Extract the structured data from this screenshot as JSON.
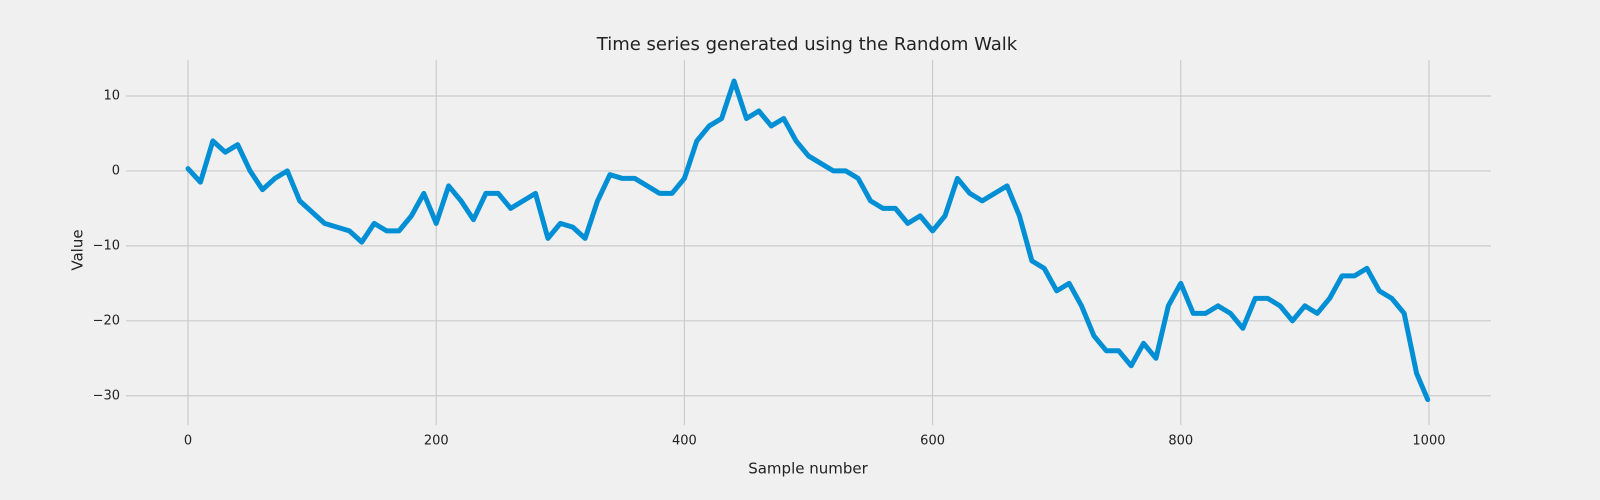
{
  "chart_data": {
    "type": "line",
    "title": "Time series generated using the Random Walk",
    "x_label": "Sample number",
    "y_label": "Value",
    "x": [
      0,
      10,
      20,
      30,
      40,
      50,
      60,
      70,
      80,
      90,
      100,
      110,
      120,
      130,
      140,
      150,
      160,
      170,
      180,
      190,
      200,
      210,
      220,
      230,
      240,
      250,
      260,
      270,
      280,
      290,
      300,
      310,
      320,
      330,
      340,
      350,
      360,
      370,
      380,
      390,
      400,
      410,
      420,
      430,
      440,
      450,
      460,
      470,
      480,
      490,
      500,
      510,
      520,
      530,
      540,
      550,
      560,
      570,
      580,
      590,
      600,
      610,
      620,
      630,
      640,
      650,
      660,
      670,
      680,
      690,
      700,
      710,
      720,
      730,
      740,
      750,
      760,
      770,
      780,
      790,
      800,
      810,
      820,
      830,
      840,
      850,
      860,
      870,
      880,
      890,
      900,
      910,
      920,
      930,
      940,
      950,
      960,
      970,
      980,
      990,
      999
    ],
    "values": [
      0.3,
      -1.5,
      4,
      2.5,
      3.5,
      0,
      -2.5,
      -1,
      0,
      -4,
      -5.5,
      -7,
      -7.5,
      -8,
      -9.5,
      -7,
      -8,
      -8,
      -6,
      -3,
      -7,
      -2,
      -4,
      -6.5,
      -3,
      -3,
      -5,
      -4,
      -3,
      -9,
      -7,
      -7.5,
      -9,
      -4,
      -0.5,
      -1,
      -1,
      -2,
      -3,
      -3,
      -1,
      4,
      6,
      7,
      12,
      7,
      8,
      6,
      7,
      4,
      2,
      1,
      0,
      0,
      -1,
      -4,
      -5,
      -5,
      -7,
      -6,
      -8,
      -6,
      -1,
      -3,
      -4,
      -3,
      -2,
      -6,
      -12,
      -13,
      -16,
      -15,
      -18,
      -22,
      -24,
      -24,
      -26,
      -23,
      -25,
      -18,
      -15,
      -19,
      -19,
      -18,
      -19,
      -21,
      -17,
      -17,
      -18,
      -20,
      -18,
      -19,
      -17,
      -14,
      -14,
      -13,
      -16,
      -17,
      -19,
      -27,
      -30.5
    ],
    "color": "#008fd5",
    "xlim": [
      -50,
      1050
    ],
    "ylim": [
      -33.9,
      14.8
    ],
    "xticks": [
      0,
      200,
      400,
      600,
      800,
      1000
    ],
    "yticks": [
      {
        "value": -30,
        "label": "−30"
      },
      {
        "value": -20,
        "label": "−20"
      },
      {
        "value": -10,
        "label": "−10"
      },
      0,
      10
    ],
    "grid": true
  }
}
